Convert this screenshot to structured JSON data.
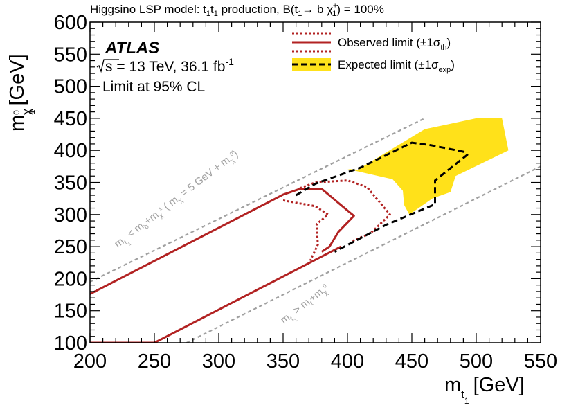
{
  "header": {
    "prefix": "Higgsino LSP model: ",
    "t_symbol": "t",
    "t_subscript": "1",
    "production_text": " production, B(",
    "decay_arrow": "→ b ",
    "chi_symbol": "χ",
    "chi_charge": "±",
    "chi_index": "1",
    "suffix": ") = 100%"
  },
  "legend": {
    "observed": "Observed limit (±1σ",
    "observed_sub": "th",
    "expected": "Expected limit (±1σ",
    "expected_sub": "exp",
    "close": ")"
  },
  "info": {
    "experiment": "ATLAS",
    "energy": "s = 13 TeV, 36.1 fb",
    "lumi_power": "-1",
    "cl": "Limit at 95% CL"
  },
  "axes": {
    "xlabel": "m",
    "xlabel_sub": "t",
    "xlabel_unit": "[GeV]",
    "ylabel": "m",
    "ylabel_sub": "χ",
    "ylabel_sup": "0",
    "ylabel_unit": "[GeV]",
    "subscript_one": "1"
  },
  "annotations": {
    "upper_m": "m",
    "upper_t": "t",
    "upper_mid": " < m",
    "upper_b": "b",
    "upper_plus": "+m",
    "upper_chi": "χ",
    "upper_sup": "±",
    "upper_paren": " ( m",
    "upper_chi2": "χ",
    "upper_text": " = 5 GeV + m",
    "upper_chi3": "χ",
    "upper_sup0": "0",
    "upper_close": ")",
    "lower_m": "m",
    "lower_t": "t",
    "lower_mid": " > m",
    "lower_top": "t",
    "lower_plus": "+m",
    "lower_chi": "χ",
    "lower_sup0": "0",
    "index_one": "1"
  },
  "colors": {
    "observed": "#b22222",
    "expected": "#000000",
    "band": "#ffe11a",
    "kinematic": "#a0a0a0"
  },
  "chart_data": {
    "type": "line",
    "title": "Higgsino LSP model: t1 t1 production, B(t1 → b χ1±) = 100%",
    "xlabel": "m_t1 [GeV]",
    "ylabel": "m_χ1^0 [GeV]",
    "xlim": [
      200,
      550
    ],
    "ylim": [
      100,
      600
    ],
    "xticks": [
      200,
      250,
      300,
      350,
      400,
      450,
      500,
      550
    ],
    "yticks": [
      100,
      150,
      200,
      250,
      300,
      350,
      400,
      450,
      500,
      550,
      600
    ],
    "series": [
      {
        "name": "Observed limit",
        "style": "solid",
        "color": "#b22222",
        "segments": [
          {
            "x": [
              200,
              350,
              363,
              380,
              393,
              405,
              393,
              386,
              380
            ],
            "y": [
              176,
              331,
              340,
              340,
              318,
              298,
              273,
              250,
              242
            ]
          },
          {
            "x": [
              200,
              250,
              395
            ],
            "y": [
              100,
              100,
              250
            ]
          }
        ]
      },
      {
        "name": "Observed +1σth",
        "style": "dotted",
        "color": "#b22222",
        "x": [
          363,
          375,
          400,
          415,
          428,
          433,
          418,
          403
        ],
        "y": [
          341,
          350,
          353,
          343,
          312,
          300,
          271,
          258
        ]
      },
      {
        "name": "Observed -1σth",
        "style": "dotted",
        "color": "#b22222",
        "x": [
          350,
          375,
          385,
          376,
          377,
          371
        ],
        "y": [
          322,
          313,
          300,
          285,
          253,
          228
        ]
      },
      {
        "name": "Expected limit",
        "style": "dashed",
        "color": "#000000",
        "x": [
          360,
          375,
          410,
          450,
          465,
          490,
          493,
          468,
          468,
          430,
          390
        ],
        "y": [
          330,
          348,
          373,
          412,
          408,
          398,
          393,
          353,
          316,
          284,
          242
        ]
      },
      {
        "name": "Expected ±1σexp band",
        "style": "filled",
        "color": "#ffe11a",
        "x": [
          408,
          460,
          500,
          520,
          525,
          484,
          480,
          466,
          448,
          444,
          443,
          435,
          400
        ],
        "y": [
          370,
          433,
          450,
          450,
          400,
          360,
          335,
          325,
          300,
          315,
          337,
          355,
          371
        ]
      }
    ],
    "kinematic_lines": [
      {
        "name": "m_t1 < m_b + m_χ1± (m_χ1± = 5 GeV + m_χ1^0)",
        "x": [
          200,
          460
        ],
        "y": [
          195,
          450
        ],
        "style": "dashed",
        "color": "#a0a0a0"
      },
      {
        "name": "m_t1 > m_t + m_χ1^0",
        "x": [
          275,
          550
        ],
        "y": [
          100,
          375
        ],
        "style": "dashed",
        "color": "#a0a0a0"
      }
    ]
  }
}
